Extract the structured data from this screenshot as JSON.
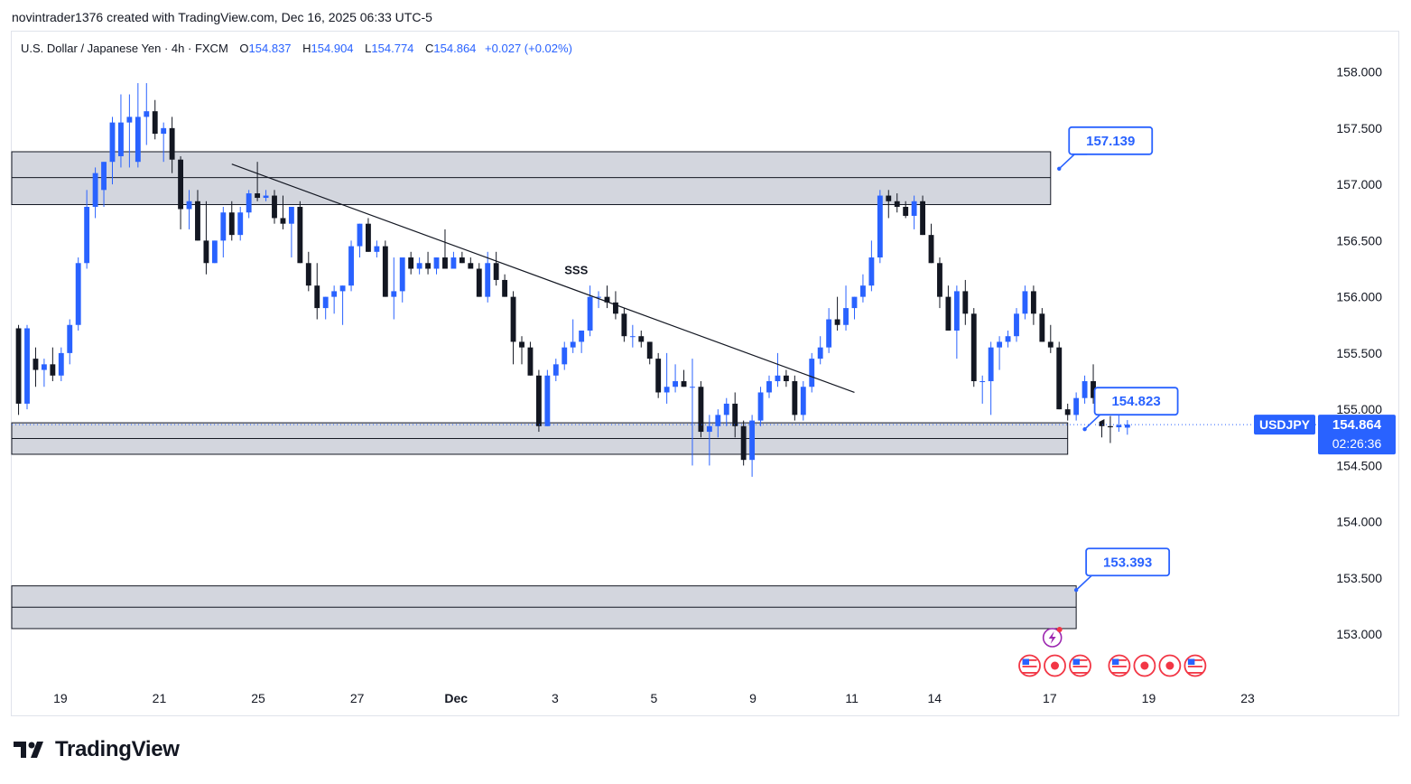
{
  "header": {
    "credit": "novintrader1376 created with TradingView.com, Dec 16, 2025 06:33 UTC-5"
  },
  "legend": {
    "symbol_desc": "U.S. Dollar / Japanese Yen · 4h · FXCM",
    "open_label": "O",
    "open": "154.837",
    "high_label": "H",
    "high": "154.904",
    "low_label": "L",
    "low": "154.774",
    "close_label": "C",
    "close": "154.864",
    "change": "+0.027 (+0.02%)"
  },
  "price_tag": {
    "symbol": "USDJPY",
    "price": "154.864",
    "countdown": "02:26:36",
    "value": 154.864
  },
  "colors": {
    "up": "#2962ff",
    "down": "#131722",
    "zone_fill": "#d1d4dc",
    "zone_line": "#131722",
    "callout": "#2962ff",
    "axis_text": "#131722",
    "event_red": "#f23645",
    "event_purple": "#9c27b0"
  },
  "footer": {
    "brand": "TradingView",
    "logo_icon": "tradingview-logo-icon"
  },
  "chart_data": {
    "type": "candlestick",
    "title": "U.S. Dollar / Japanese Yen · 4h · FXCM",
    "ylim": [
      152.6,
      158.35
    ],
    "xlim": [
      -0.8,
      146
    ],
    "y_ticks": [
      "158.000",
      "157.500",
      "157.000",
      "156.500",
      "156.000",
      "155.500",
      "155.000",
      "154.500",
      "154.000",
      "153.500",
      "153.000"
    ],
    "x_ticks": [
      {
        "label": "19",
        "idx": 4.9
      },
      {
        "label": "21",
        "idx": 16.5
      },
      {
        "label": "25",
        "idx": 28.1
      },
      {
        "label": "27",
        "idx": 39.7
      },
      {
        "label": "Dec",
        "idx": 51.3
      },
      {
        "label": "3",
        "idx": 62.9
      },
      {
        "label": "5",
        "idx": 74.5
      },
      {
        "label": "9",
        "idx": 86.1
      },
      {
        "label": "11",
        "idx": 97.7
      },
      {
        "label": "14",
        "idx": 107.4
      },
      {
        "label": "17",
        "idx": 120.9
      },
      {
        "label": "19",
        "idx": 132.5
      },
      {
        "label": "23",
        "idx": 144.1
      }
    ],
    "candles": [
      [
        155.72,
        155.75,
        154.95,
        155.05
      ],
      [
        155.05,
        155.75,
        155.0,
        155.72
      ],
      [
        155.45,
        155.55,
        155.2,
        155.35
      ],
      [
        155.35,
        155.45,
        155.2,
        155.4
      ],
      [
        155.4,
        155.55,
        155.25,
        155.3
      ],
      [
        155.3,
        155.55,
        155.25,
        155.5
      ],
      [
        155.5,
        155.8,
        155.4,
        155.75
      ],
      [
        155.75,
        156.35,
        155.7,
        156.3
      ],
      [
        156.3,
        156.95,
        156.25,
        156.8
      ],
      [
        156.8,
        157.15,
        156.7,
        157.1
      ],
      [
        156.95,
        157.2,
        156.8,
        157.2
      ],
      [
        157.2,
        157.6,
        157.0,
        157.55
      ],
      [
        157.25,
        157.8,
        157.15,
        157.55
      ],
      [
        157.55,
        157.8,
        157.15,
        157.6
      ],
      [
        157.2,
        157.9,
        157.15,
        157.6
      ],
      [
        157.6,
        157.9,
        157.35,
        157.65
      ],
      [
        157.65,
        157.75,
        157.4,
        157.45
      ],
      [
        157.45,
        157.55,
        157.2,
        157.5
      ],
      [
        157.5,
        157.6,
        157.1,
        157.22
      ],
      [
        157.22,
        157.25,
        156.6,
        156.78
      ],
      [
        156.78,
        156.95,
        156.6,
        156.85
      ],
      [
        156.85,
        156.95,
        156.5,
        156.5
      ],
      [
        156.5,
        156.85,
        156.2,
        156.3
      ],
      [
        156.3,
        156.5,
        156.3,
        156.5
      ],
      [
        156.5,
        156.8,
        156.35,
        156.75
      ],
      [
        156.75,
        156.85,
        156.5,
        156.55
      ],
      [
        156.55,
        156.8,
        156.5,
        156.75
      ],
      [
        156.75,
        156.95,
        156.7,
        156.92
      ],
      [
        156.92,
        157.2,
        156.85,
        156.88
      ],
      [
        156.88,
        156.95,
        156.85,
        156.9
      ],
      [
        156.9,
        156.95,
        156.65,
        156.7
      ],
      [
        156.7,
        156.9,
        156.6,
        156.65
      ],
      [
        156.65,
        156.8,
        156.35,
        156.8
      ],
      [
        156.8,
        156.85,
        156.3,
        156.3
      ],
      [
        156.3,
        156.4,
        156.05,
        156.1
      ],
      [
        156.1,
        156.3,
        155.8,
        155.9
      ],
      [
        155.9,
        156.0,
        155.8,
        156.0
      ],
      [
        156.0,
        156.1,
        155.85,
        156.05
      ],
      [
        156.05,
        156.1,
        155.75,
        156.1
      ],
      [
        156.1,
        156.5,
        156.05,
        156.45
      ],
      [
        156.45,
        156.65,
        156.35,
        156.65
      ],
      [
        156.65,
        156.7,
        156.4,
        156.4
      ],
      [
        156.4,
        156.5,
        156.35,
        156.45
      ],
      [
        156.45,
        156.5,
        156.0,
        156.0
      ],
      [
        156.0,
        156.35,
        155.8,
        156.05
      ],
      [
        156.05,
        156.3,
        155.95,
        156.35
      ],
      [
        156.35,
        156.4,
        156.2,
        156.25
      ],
      [
        156.25,
        156.35,
        156.2,
        156.3
      ],
      [
        156.3,
        156.4,
        156.2,
        156.25
      ],
      [
        156.25,
        156.35,
        156.2,
        156.35
      ],
      [
        156.35,
        156.6,
        156.25,
        156.25
      ],
      [
        156.25,
        156.4,
        156.25,
        156.35
      ],
      [
        156.35,
        156.4,
        156.3,
        156.3
      ],
      [
        156.3,
        156.35,
        156.25,
        156.25
      ],
      [
        156.25,
        156.3,
        156.0,
        156.0
      ],
      [
        156.0,
        156.4,
        155.95,
        156.3
      ],
      [
        156.3,
        156.4,
        156.1,
        156.15
      ],
      [
        156.15,
        156.2,
        156.0,
        156.0
      ],
      [
        156.0,
        156.05,
        155.4,
        155.6
      ],
      [
        155.6,
        155.65,
        155.4,
        155.55
      ],
      [
        155.55,
        155.6,
        155.3,
        155.3
      ],
      [
        155.3,
        155.35,
        154.8,
        154.85
      ],
      [
        154.85,
        155.35,
        154.85,
        155.3
      ],
      [
        155.3,
        155.45,
        155.25,
        155.4
      ],
      [
        155.4,
        155.6,
        155.35,
        155.55
      ],
      [
        155.55,
        155.8,
        155.5,
        155.6
      ],
      [
        155.6,
        155.7,
        155.5,
        155.7
      ],
      [
        155.7,
        156.1,
        155.65,
        156.0
      ],
      [
        156.0,
        156.05,
        155.9,
        156.0
      ],
      [
        156.0,
        156.1,
        155.9,
        155.95
      ],
      [
        155.95,
        156.05,
        155.8,
        155.85
      ],
      [
        155.85,
        155.9,
        155.6,
        155.65
      ],
      [
        155.65,
        155.75,
        155.55,
        155.65
      ],
      [
        155.65,
        155.7,
        155.55,
        155.6
      ],
      [
        155.6,
        155.6,
        155.4,
        155.45
      ],
      [
        155.45,
        155.5,
        155.1,
        155.15
      ],
      [
        155.15,
        155.5,
        155.05,
        155.2
      ],
      [
        155.2,
        155.4,
        155.15,
        155.25
      ],
      [
        155.25,
        155.35,
        155.2,
        155.2
      ],
      [
        155.2,
        155.45,
        154.5,
        155.2
      ],
      [
        155.2,
        155.25,
        154.75,
        154.8
      ],
      [
        154.8,
        154.95,
        154.5,
        154.85
      ],
      [
        154.85,
        155.0,
        154.75,
        154.95
      ],
      [
        154.95,
        155.1,
        154.85,
        155.05
      ],
      [
        155.05,
        155.15,
        154.75,
        154.85
      ],
      [
        154.85,
        154.9,
        154.5,
        154.55
      ],
      [
        154.55,
        154.95,
        154.4,
        154.9
      ],
      [
        154.9,
        155.2,
        154.85,
        155.15
      ],
      [
        155.15,
        155.3,
        155.1,
        155.25
      ],
      [
        155.25,
        155.5,
        155.2,
        155.3
      ],
      [
        155.3,
        155.35,
        155.2,
        155.25
      ],
      [
        155.25,
        155.3,
        154.9,
        154.95
      ],
      [
        154.95,
        155.25,
        154.9,
        155.2
      ],
      [
        155.2,
        155.5,
        155.15,
        155.45
      ],
      [
        155.45,
        155.65,
        155.4,
        155.55
      ],
      [
        155.55,
        155.9,
        155.5,
        155.8
      ],
      [
        155.8,
        156.0,
        155.7,
        155.75
      ],
      [
        155.75,
        156.1,
        155.7,
        155.9
      ],
      [
        155.9,
        156.0,
        155.8,
        156.0
      ],
      [
        156.0,
        156.2,
        155.95,
        156.1
      ],
      [
        156.1,
        156.5,
        156.05,
        156.35
      ],
      [
        156.35,
        156.95,
        156.3,
        156.9
      ],
      [
        156.9,
        156.95,
        156.7,
        156.85
      ],
      [
        156.85,
        156.92,
        156.75,
        156.8
      ],
      [
        156.8,
        156.85,
        156.7,
        156.72
      ],
      [
        156.72,
        156.9,
        156.6,
        156.85
      ],
      [
        156.85,
        156.9,
        156.55,
        156.55
      ],
      [
        156.55,
        156.65,
        156.3,
        156.3
      ],
      [
        156.3,
        156.35,
        155.9,
        156.0
      ],
      [
        156.0,
        156.1,
        155.7,
        155.7
      ],
      [
        155.7,
        156.1,
        155.45,
        156.05
      ],
      [
        156.05,
        156.15,
        155.75,
        155.85
      ],
      [
        155.85,
        155.9,
        155.2,
        155.25
      ],
      [
        155.25,
        155.3,
        155.05,
        155.25
      ],
      [
        155.25,
        155.6,
        154.95,
        155.55
      ],
      [
        155.55,
        155.65,
        155.35,
        155.6
      ],
      [
        155.6,
        155.7,
        155.55,
        155.65
      ],
      [
        155.65,
        155.9,
        155.6,
        155.85
      ],
      [
        155.85,
        156.1,
        155.8,
        156.05
      ],
      [
        156.05,
        156.1,
        155.75,
        155.85
      ],
      [
        155.85,
        155.9,
        155.6,
        155.6
      ],
      [
        155.6,
        155.75,
        155.5,
        155.55
      ],
      [
        155.55,
        155.6,
        155.0,
        155.0
      ],
      [
        155.0,
        155.05,
        154.9,
        154.95
      ],
      [
        154.95,
        155.15,
        154.9,
        155.1
      ],
      [
        155.1,
        155.3,
        155.05,
        155.25
      ],
      [
        155.25,
        155.4,
        155.05,
        155.1
      ],
      [
        155.1,
        155.15,
        154.75,
        154.85
      ],
      [
        154.85,
        155.0,
        154.7,
        154.84
      ],
      [
        154.84,
        154.95,
        154.8,
        154.86
      ],
      [
        154.837,
        154.904,
        154.774,
        154.864
      ]
    ],
    "trendline": {
      "from": [
        25,
        157.18
      ],
      "to": [
        98,
        155.15
      ]
    },
    "zones": [
      {
        "top": 157.29,
        "bottom": 156.82,
        "mid": 157.06,
        "end_idx": 121
      },
      {
        "top": 154.88,
        "bottom": 154.6,
        "mid": 154.74,
        "end_idx": 123
      },
      {
        "top": 153.43,
        "bottom": 153.05,
        "mid": 153.24,
        "end_idx": 124
      }
    ],
    "callouts": [
      {
        "label": "157.139",
        "value": 157.139,
        "anchor_idx": 122
      },
      {
        "label": "154.823",
        "value": 154.823,
        "anchor_idx": 125
      },
      {
        "label": "153.393",
        "value": 153.393,
        "anchor_idx": 124
      }
    ],
    "annotations": [
      {
        "text": "SSS",
        "idx": 64,
        "value": 156.2
      }
    ],
    "event_groups": [
      {
        "x_idx": 121.5,
        "icons": [
          "us-flag-icon",
          "japan-flag-icon",
          "us-flag-icon"
        ]
      },
      {
        "x_idx": 133.5,
        "icons": [
          "us-flag-icon",
          "japan-flag-icon",
          "japan-flag-icon",
          "us-flag-icon"
        ]
      }
    ],
    "lightning_idx": 121.2
  }
}
